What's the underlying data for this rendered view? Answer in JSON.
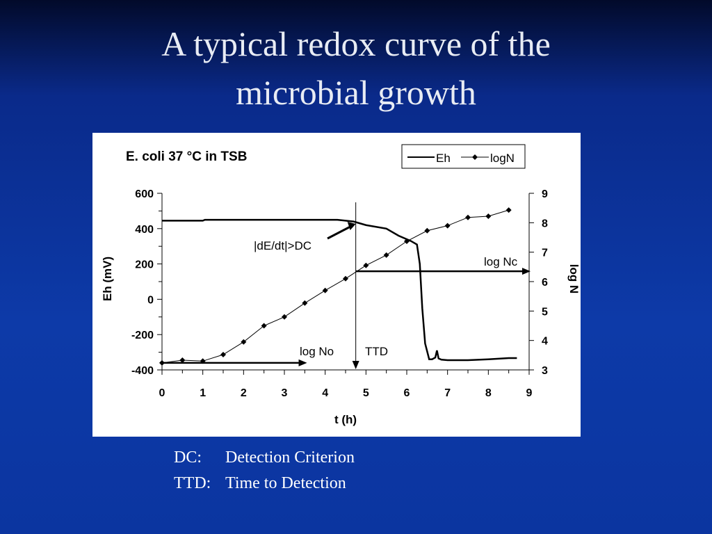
{
  "slide": {
    "title_line1": "A typical redox curve of  the",
    "title_line2": "microbial growth"
  },
  "notes": [
    {
      "key": "DC:",
      "text": "Detection Criterion"
    },
    {
      "key": "TTD:",
      "text": "Time to Detection"
    }
  ],
  "chart_data": {
    "type": "line",
    "title": "E. coli 37 °C in TSB",
    "xlabel": "t (h)",
    "ylabel": "Eh (mV)",
    "y2label": "log N",
    "xlim": [
      0,
      9
    ],
    "ylim": [
      -400,
      600
    ],
    "y2lim": [
      3,
      9
    ],
    "xticks": [
      0,
      1,
      2,
      3,
      4,
      5,
      6,
      7,
      8,
      9
    ],
    "yticks": [
      -400,
      -200,
      0,
      200,
      400,
      600
    ],
    "y2ticks": [
      3,
      4,
      5,
      6,
      7,
      8,
      9
    ],
    "legend": {
      "position": "top-right",
      "entries": [
        "Eh",
        "logN"
      ]
    },
    "series": [
      {
        "name": "Eh",
        "axis": "left",
        "color": "#000000",
        "x": [
          0,
          1,
          1.05,
          4.3,
          4.7,
          5.0,
          5.5,
          5.8,
          6.1,
          6.25,
          6.32,
          6.38,
          6.45,
          6.55,
          6.62,
          6.7,
          6.74,
          6.78,
          6.85,
          7.0,
          7.5,
          8.0,
          8.5,
          8.7
        ],
        "y": [
          445,
          445,
          450,
          450,
          440,
          420,
          400,
          360,
          330,
          310,
          200,
          -50,
          -250,
          -340,
          -340,
          -330,
          -290,
          -335,
          -342,
          -345,
          -345,
          -340,
          -333,
          -333
        ]
      },
      {
        "name": "logN",
        "axis": "right",
        "color": "#000000",
        "marker": "diamond",
        "x": [
          0,
          0.5,
          1,
          1.5,
          2,
          2.5,
          3,
          3.5,
          4,
          4.5,
          5,
          5.5,
          6,
          6.5,
          7,
          7.5,
          8,
          8.5
        ],
        "y": [
          3.24,
          3.33,
          3.3,
          3.52,
          3.95,
          4.5,
          4.8,
          5.27,
          5.7,
          6.1,
          6.55,
          6.9,
          7.37,
          7.73,
          7.9,
          8.18,
          8.22,
          8.43
        ]
      }
    ],
    "annotations": [
      {
        "text": "|dE/dt|>DC",
        "points_to_x": 4.75
      },
      {
        "text": "log Nc",
        "logN": 6.35
      },
      {
        "text": "log No",
        "logN": 3.24
      },
      {
        "text": "TTD",
        "x": 4.75
      }
    ]
  }
}
